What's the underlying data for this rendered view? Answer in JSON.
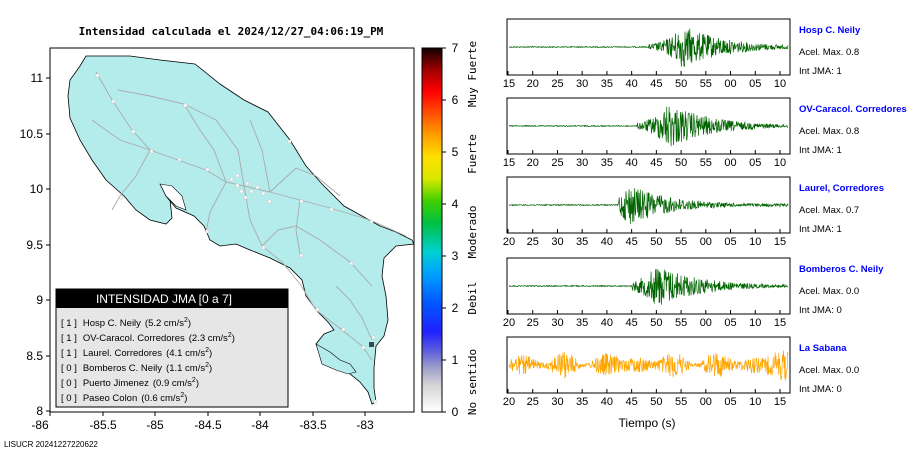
{
  "map": {
    "title": "Intensidad calculada el 2024/12/27_04:06:19_PM",
    "y_ticks": [
      "11",
      "10.5",
      "10",
      "9.5",
      "9",
      "8.5",
      "8"
    ],
    "x_ticks": [
      "-86",
      "-85.5",
      "-85",
      "-84.5",
      "-84",
      "-83.5",
      "-83"
    ],
    "colors": {
      "land": "#b4ecec",
      "sea": "#ffffff",
      "roads": "#a9a9a9"
    }
  },
  "legend_box": {
    "header": "INTENSIDAD JMA [0 a 7]",
    "items": [
      {
        "level": "[ 1 ]",
        "name": "Hosp C. Neily",
        "accel": "(5.2 cm/s",
        "sup": "2",
        "close": ")"
      },
      {
        "level": "[ 1 ]",
        "name": "OV-Caracol. Corredores",
        "accel": "(2.3 cm/s",
        "sup": "2",
        "close": ")"
      },
      {
        "level": "[ 1 ]",
        "name": "Laurel. Corredores",
        "accel": "(4.1 cm/s",
        "sup": "2",
        "close": ")"
      },
      {
        "level": "[ 0 ]",
        "name": "Bomberos C. Neily",
        "accel": "(1.1 cm/s",
        "sup": "2",
        "close": ")"
      },
      {
        "level": "[ 0 ]",
        "name": "Puerto Jimenez",
        "accel": "(0.9 cm/s",
        "sup": "2",
        "close": ")"
      },
      {
        "level": "[ 0 ]",
        "name": "Paseo Colon",
        "accel": "(0.6 cm/s",
        "sup": "2",
        "close": ")"
      }
    ]
  },
  "colorbar": {
    "ticks": [
      "7",
      "6",
      "5",
      "4",
      "3",
      "2",
      "1",
      "0"
    ],
    "labels": [
      "Muy Fuerte",
      "Fuerte",
      "Moderado",
      "Debil",
      "No sentido"
    ]
  },
  "footer": "LISUCR 20241227220622",
  "seismograms": {
    "xlabel": "Tiempo (s)",
    "station_color": "#0000ff",
    "traces": [
      {
        "station": "Hosp C. Neily",
        "accel_label": "Acel. Max. 0.8",
        "int_label": "Int JMA: 1",
        "color": "#006400",
        "ticks": [
          "15",
          "20",
          "25",
          "30",
          "35",
          "40",
          "45",
          "50",
          "55",
          "00",
          "05",
          "10"
        ],
        "onset": 0.5,
        "peak": 0.62,
        "env": 0.85
      },
      {
        "station": "OV-Caracol. Corredores",
        "accel_label": "Acel. Max. 0.8",
        "int_label": "Int JMA: 1",
        "color": "#006400",
        "ticks": [
          "15",
          "20",
          "25",
          "30",
          "35",
          "40",
          "45",
          "50",
          "55",
          "00",
          "05",
          "10"
        ],
        "onset": 0.46,
        "peak": 0.57,
        "env": 0.9
      },
      {
        "station": "Laurel, Corredores",
        "accel_label": "Acel. Max. 0.7",
        "int_label": "Int JMA: 1",
        "color": "#006400",
        "ticks": [
          "20",
          "25",
          "30",
          "35",
          "40",
          "45",
          "50",
          "55",
          "00",
          "05",
          "10",
          "15"
        ],
        "onset": 0.39,
        "peak": 0.43,
        "env": 0.8
      },
      {
        "station": "Bomberos C. Neily",
        "accel_label": "Acel. Max. 0.0",
        "int_label": "Int JMA: 0",
        "color": "#006400",
        "ticks": [
          "20",
          "25",
          "30",
          "35",
          "40",
          "45",
          "50",
          "55",
          "00",
          "05",
          "10",
          "15"
        ],
        "onset": 0.44,
        "peak": 0.53,
        "env": 0.85
      },
      {
        "station": "La Sabana",
        "accel_label": "Acel. Max. 0.0",
        "int_label": "Int JMA: 0",
        "color": "#ffa500",
        "ticks": [
          "20",
          "25",
          "30",
          "35",
          "40",
          "45",
          "50",
          "55",
          "00",
          "05",
          "10",
          "15"
        ],
        "onset": -1,
        "peak": -1,
        "env": 0.55
      }
    ]
  },
  "chart_data": [
    {
      "type": "map",
      "title": "Intensidad calculada el 2024/12/27_04:06:19_PM",
      "xlim": [
        -86,
        -82.5
      ],
      "ylim": [
        8,
        11.3
      ],
      "x_ticks": [
        -86,
        -85.5,
        -85,
        -84.5,
        -84,
        -83.5,
        -83
      ],
      "y_ticks": [
        8,
        8.5,
        9,
        9.5,
        10,
        10.5,
        11
      ],
      "legend_placement": "bottom-left",
      "stations": [
        {
          "name": "Hosp C. Neily",
          "jma": 1,
          "accel_cm_s2": 5.2
        },
        {
          "name": "OV-Caracol. Corredores",
          "jma": 1,
          "accel_cm_s2": 2.3
        },
        {
          "name": "Laurel. Corredores",
          "jma": 1,
          "accel_cm_s2": 4.1
        },
        {
          "name": "Bomberos C. Neily",
          "jma": 0,
          "accel_cm_s2": 1.1
        },
        {
          "name": "Puerto Jimenez",
          "jma": 0,
          "accel_cm_s2": 0.9
        },
        {
          "name": "Paseo Colon",
          "jma": 0,
          "accel_cm_s2": 0.6
        }
      ]
    },
    {
      "type": "colorbar",
      "range": [
        0,
        7
      ],
      "ticks": [
        0,
        1,
        2,
        3,
        4,
        5,
        6,
        7
      ],
      "labels": [
        "No sentido",
        "Debil",
        "Moderado",
        "Fuerte",
        "Muy Fuerte"
      ]
    },
    {
      "type": "line",
      "xlabel": "Tiempo (s)",
      "series": [
        {
          "name": "Hosp C. Neily",
          "acel_max": 0.8,
          "int_jma": 1
        },
        {
          "name": "OV-Caracol, Corredore",
          "acel_max": 0.8,
          "int_jma": 1
        },
        {
          "name": "Laurel, Corredores",
          "acel_max": 0.7,
          "int_jma": 1
        },
        {
          "name": "Bomberos C. Neily",
          "acel_max": 0.0,
          "int_jma": 0
        },
        {
          "name": "La Sabana",
          "acel_max": 0.0,
          "int_jma": 0
        }
      ]
    }
  ]
}
